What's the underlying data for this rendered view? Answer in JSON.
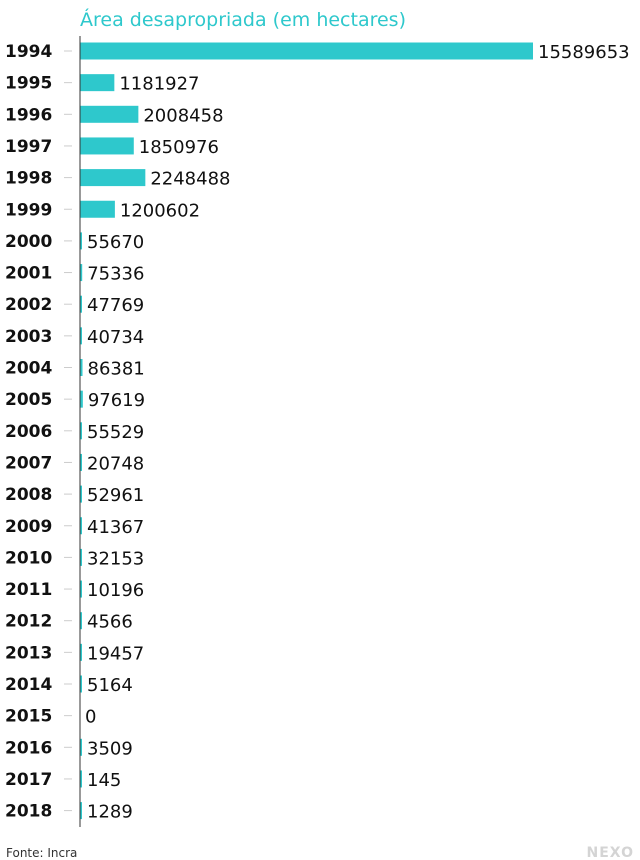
{
  "chart_data": {
    "type": "bar",
    "orientation": "horizontal",
    "title": "Área desapropriada (em hectares)",
    "categories": [
      "1994",
      "1995",
      "1996",
      "1997",
      "1998",
      "1999",
      "2000",
      "2001",
      "2002",
      "2003",
      "2004",
      "2005",
      "2006",
      "2007",
      "2008",
      "2009",
      "2010",
      "2011",
      "2012",
      "2013",
      "2014",
      "2015",
      "2016",
      "2017",
      "2018"
    ],
    "values": [
      15589653,
      1181927,
      2008458,
      1850976,
      2248488,
      1200602,
      55670,
      75336,
      47769,
      40734,
      86381,
      97619,
      55529,
      20748,
      52961,
      41367,
      32153,
      10196,
      4566,
      19457,
      5164,
      0,
      3509,
      145,
      1289
    ],
    "xlim": [
      0,
      15589653
    ],
    "grid": false,
    "bar_color": "#2ec8cc"
  },
  "source": "Fonte: Incra",
  "brand": "NEXO"
}
